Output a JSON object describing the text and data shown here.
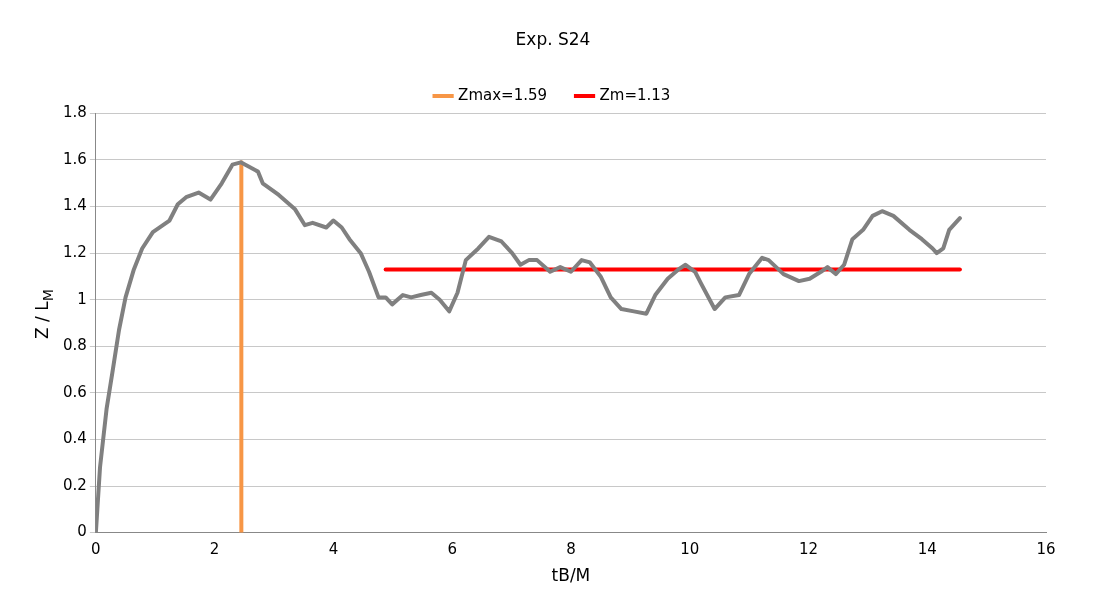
{
  "chart_data": {
    "type": "line",
    "title": "Exp. S24",
    "xlabel": "tB/M",
    "ylabel": "Z / L$_{M}$",
    "series": [
      {
        "color": "#808080",
        "x": [
          0,
          0.07,
          0.18,
          0.28,
          0.39,
          0.5,
          0.64,
          0.78,
          0.96,
          1.13,
          1.24,
          1.38,
          1.52,
          1.73,
          1.93,
          2.12,
          2.3,
          2.44,
          2.73,
          2.81,
          3.08,
          3.35,
          3.52,
          3.65,
          3.88,
          4.0,
          4.14,
          4.27,
          4.46,
          4.6,
          4.76,
          4.88,
          4.99,
          5.17,
          5.31,
          5.47,
          5.65,
          5.79,
          5.95,
          6.09,
          6.23,
          6.44,
          6.62,
          6.83,
          7.01,
          7.15,
          7.29,
          7.43,
          7.65,
          7.82,
          8.0,
          8.18,
          8.32,
          8.5,
          8.67,
          8.85,
          9.06,
          9.27,
          9.42,
          9.63,
          9.81,
          9.93,
          10.09,
          10.19,
          10.42,
          10.6,
          10.83,
          11.0,
          11.22,
          11.33,
          11.58,
          11.84,
          12.02,
          12.21,
          12.32,
          12.46,
          12.6,
          12.74,
          12.92,
          13.08,
          13.24,
          13.43,
          13.7,
          13.91,
          14.09,
          14.16,
          14.27,
          14.37,
          14.55
        ],
        "values": [
          0,
          0.28,
          0.53,
          0.69,
          0.87,
          1.01,
          1.13,
          1.22,
          1.29,
          1.32,
          1.34,
          1.41,
          1.44,
          1.46,
          1.43,
          1.5,
          1.58,
          1.59,
          1.55,
          1.5,
          1.45,
          1.39,
          1.32,
          1.33,
          1.31,
          1.34,
          1.31,
          1.26,
          1.2,
          1.12,
          1.01,
          1.01,
          0.98,
          1.02,
          1.01,
          1.02,
          1.03,
          1.0,
          0.95,
          1.03,
          1.17,
          1.22,
          1.27,
          1.25,
          1.2,
          1.15,
          1.17,
          1.17,
          1.12,
          1.14,
          1.12,
          1.17,
          1.16,
          1.1,
          1.01,
          0.96,
          0.95,
          0.94,
          1.02,
          1.09,
          1.13,
          1.15,
          1.12,
          1.07,
          0.96,
          1.01,
          1.02,
          1.11,
          1.18,
          1.17,
          1.11,
          1.08,
          1.09,
          1.12,
          1.14,
          1.11,
          1.15,
          1.26,
          1.3,
          1.36,
          1.38,
          1.36,
          1.3,
          1.26,
          1.22,
          1.2,
          1.22,
          1.3,
          1.35
        ]
      },
      {
        "name": "Zmax=1.59",
        "color": "#f79646",
        "x": [
          2.45,
          2.45
        ],
        "values": [
          0,
          1.59
        ]
      },
      {
        "name": "Zm=1.13",
        "color": "#ff0000",
        "x": [
          4.88,
          14.55
        ],
        "values": [
          1.13,
          1.13
        ]
      }
    ],
    "xlim": [
      0,
      16
    ],
    "xticks": [
      0,
      2,
      4,
      6,
      8,
      10,
      12,
      14,
      16
    ],
    "ylim": [
      0,
      1.8
    ],
    "yticks": [
      0,
      0.2,
      0.4,
      0.6,
      0.8,
      1,
      1.2,
      1.4,
      1.6,
      1.8
    ],
    "grid": "y",
    "legend": "top",
    "marker": "none",
    "line_style": "solid"
  }
}
